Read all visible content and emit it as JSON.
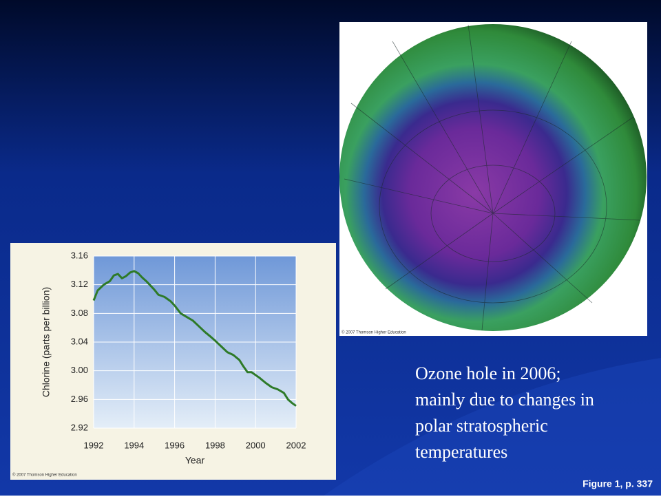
{
  "caption": [
    "Ozone hole in 2006;",
    "mainly due to changes in",
    "polar stratospheric",
    "temperatures"
  ],
  "figure_ref": "Figure 1, p. 337",
  "image_credit": "© 2007 Thomson Higher Education",
  "chart_data": {
    "type": "line",
    "ylabel": "Chlorine (parts per billion)",
    "xlabel": "Year",
    "credit": "© 2007 Thomson Higher Education",
    "x": [
      1992.0,
      1992.2,
      1992.5,
      1992.8,
      1993.0,
      1993.2,
      1993.4,
      1993.6,
      1993.8,
      1994.0,
      1994.2,
      1994.4,
      1994.6,
      1994.8,
      1995.0,
      1995.2,
      1995.5,
      1995.8,
      1996.0,
      1996.3,
      1996.6,
      1996.9,
      1997.2,
      1997.5,
      1997.8,
      1998.0,
      1998.3,
      1998.6,
      1998.9,
      1999.2,
      1999.4,
      1999.6,
      1999.8,
      2000.0,
      2000.2,
      2000.5,
      2000.8,
      2001.1,
      2001.4,
      2001.6,
      2001.8,
      2002.0
    ],
    "values": [
      3.098,
      3.112,
      3.12,
      3.125,
      3.133,
      3.135,
      3.129,
      3.132,
      3.137,
      3.139,
      3.136,
      3.13,
      3.125,
      3.119,
      3.113,
      3.106,
      3.103,
      3.097,
      3.091,
      3.08,
      3.075,
      3.07,
      3.062,
      3.054,
      3.047,
      3.042,
      3.034,
      3.026,
      3.022,
      3.015,
      3.006,
      2.998,
      2.998,
      2.994,
      2.99,
      2.983,
      2.977,
      2.974,
      2.969,
      2.96,
      2.955,
      2.951
    ],
    "color": "#2e7a28",
    "xlim": [
      1992,
      2002
    ],
    "xticks": [
      1992,
      1994,
      1996,
      1998,
      2000,
      2002
    ],
    "ylim": [
      2.92,
      3.16
    ],
    "yticks": [
      2.92,
      2.96,
      {
        "value": 3,
        "label": "3.00"
      },
      3.04,
      3.08,
      3.12,
      3.16
    ],
    "grid": true
  }
}
